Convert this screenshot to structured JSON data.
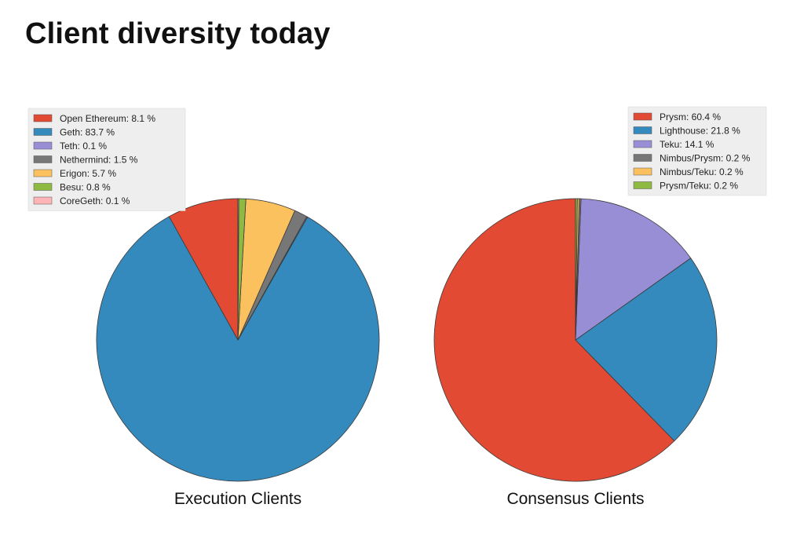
{
  "page": {
    "title": "Client diversity today"
  },
  "chart_data": [
    {
      "type": "pie",
      "title": "",
      "xlabel": "Execution Clients",
      "legend_position": "top-left",
      "slice_order": "counterclockwise-from-top",
      "series": [
        {
          "label": "Open Ethereum: 8.1 %",
          "name": "Open Ethereum",
          "value": 8.1,
          "color": "#E24A33"
        },
        {
          "label": "Geth: 83.7 %",
          "name": "Geth",
          "value": 83.7,
          "color": "#348ABD"
        },
        {
          "label": "Teth: 0.1 %",
          "name": "Teth",
          "value": 0.1,
          "color": "#988ED5"
        },
        {
          "label": "Nethermind: 1.5 %",
          "name": "Nethermind",
          "value": 1.5,
          "color": "#777777"
        },
        {
          "label": "Erigon: 5.7 %",
          "name": "Erigon",
          "value": 5.7,
          "color": "#FBC15E"
        },
        {
          "label": "Besu: 0.8 %",
          "name": "Besu",
          "value": 0.8,
          "color": "#8EBA42"
        },
        {
          "label": "CoreGeth: 0.1 %",
          "name": "CoreGeth",
          "value": 0.1,
          "color": "#FFB5B8"
        }
      ]
    },
    {
      "type": "pie",
      "title": "",
      "xlabel": "Consensus Clients",
      "legend_position": "top-right",
      "slice_order": "counterclockwise-from-top",
      "series": [
        {
          "label": "Prysm: 60.4 %",
          "name": "Prysm",
          "value": 60.4,
          "color": "#E24A33"
        },
        {
          "label": "Lighthouse: 21.8 %",
          "name": "Lighthouse",
          "value": 21.8,
          "color": "#348ABD"
        },
        {
          "label": "Teku: 14.1 %",
          "name": "Teku",
          "value": 14.1,
          "color": "#988ED5"
        },
        {
          "label": "Nimbus/Prysm: 0.2 %",
          "name": "Nimbus/Prysm",
          "value": 0.2,
          "color": "#777777"
        },
        {
          "label": "Nimbus/Teku: 0.2 %",
          "name": "Nimbus/Teku",
          "value": 0.2,
          "color": "#FBC15E"
        },
        {
          "label": "Prysm/Teku: 0.2 %",
          "name": "Prysm/Teku",
          "value": 0.2,
          "color": "#8EBA42"
        }
      ]
    }
  ]
}
